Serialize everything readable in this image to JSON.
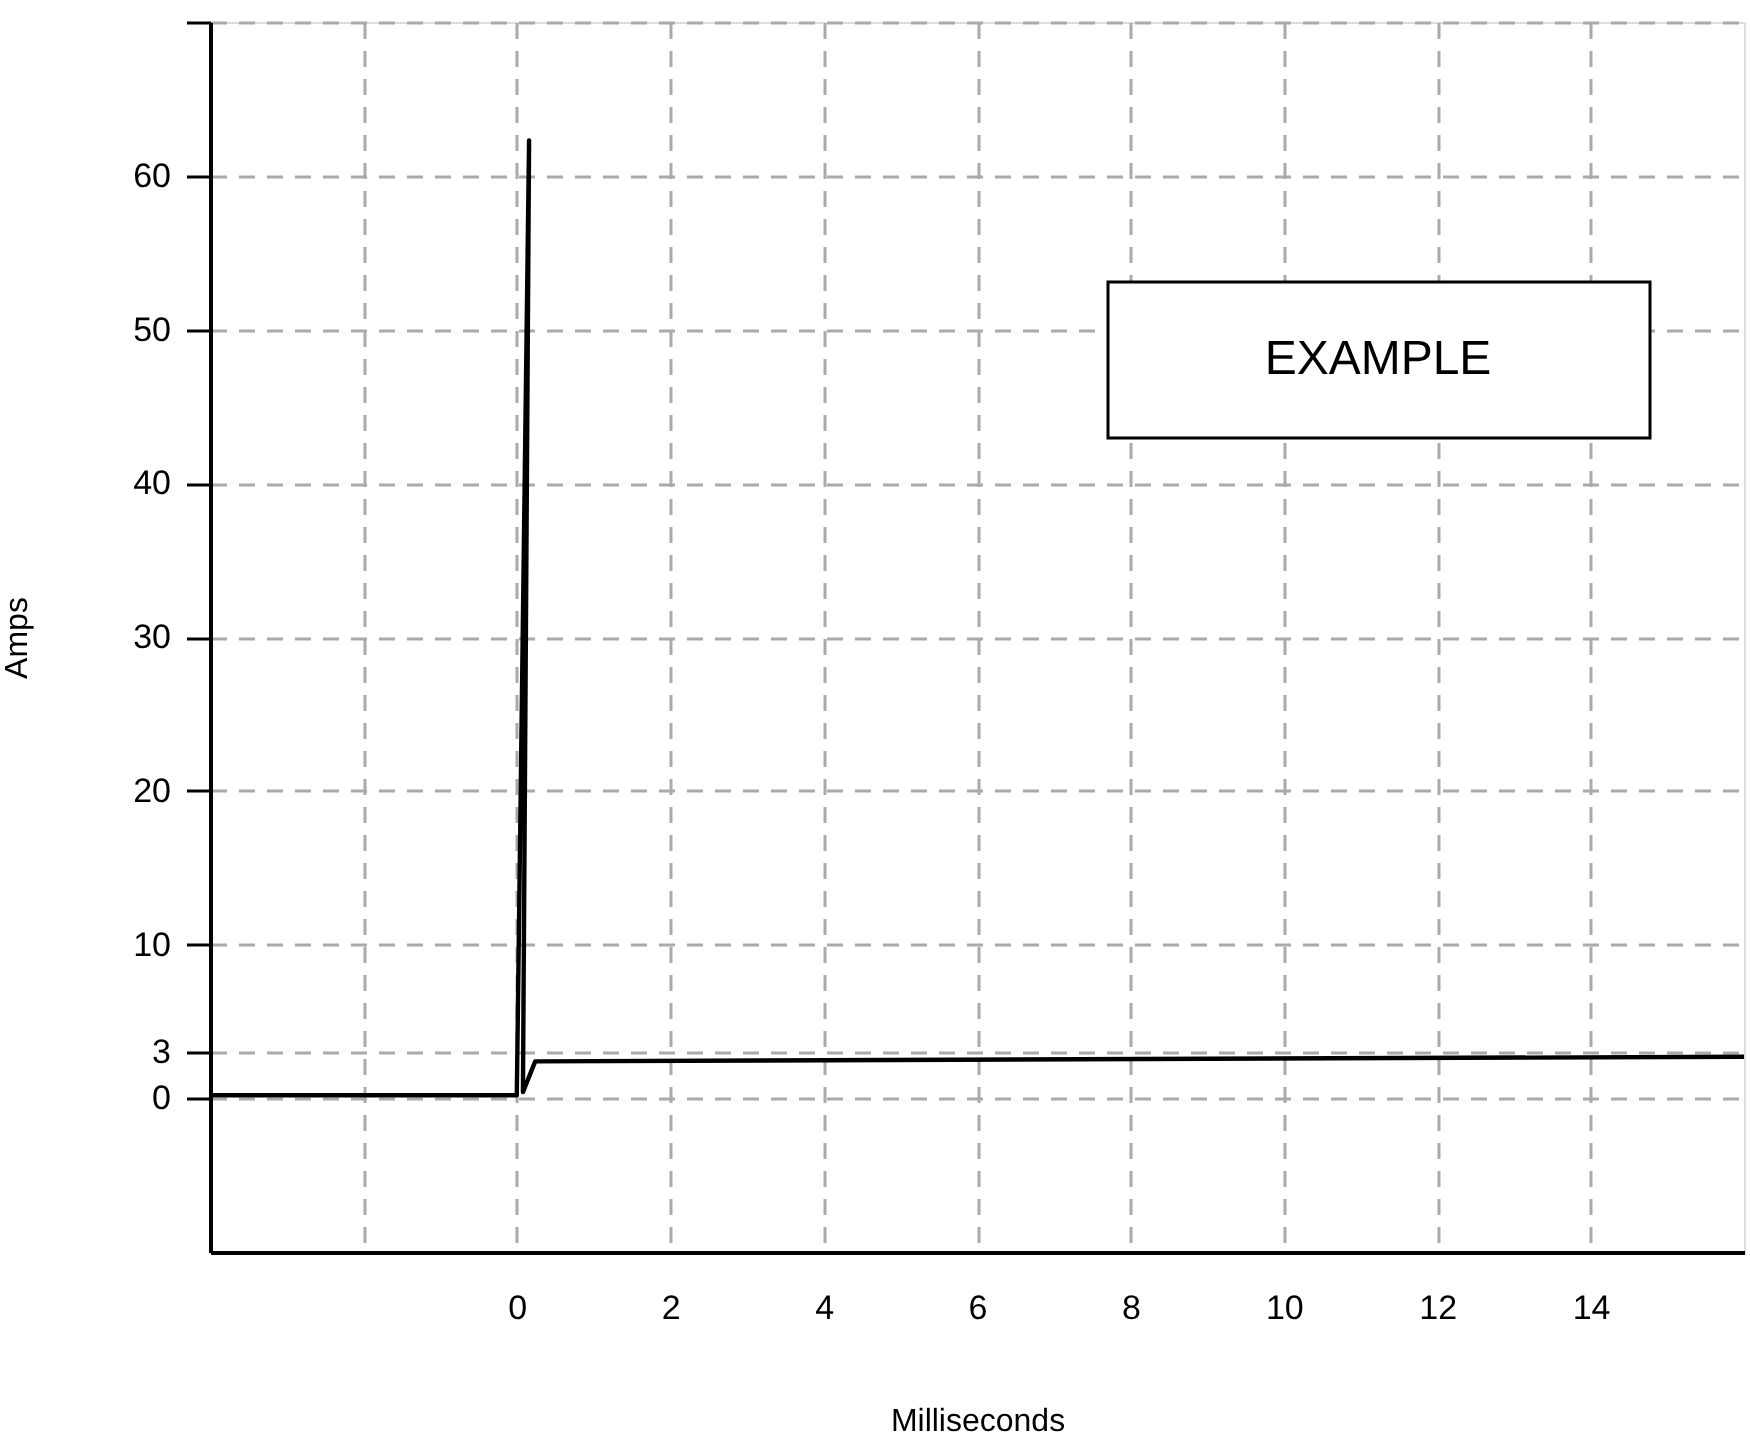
{
  "chart_data": {
    "type": "line",
    "xlabel": "Milliseconds",
    "ylabel": "Amps",
    "x": [
      -4,
      0,
      0.16,
      0.08,
      0.24,
      16
    ],
    "series": [
      {
        "color": "#000000",
        "values": [
          0.2,
          0.2,
          62.3,
          0.4,
          2.4,
          2.7
        ]
      }
    ],
    "xlim": [
      -4,
      16
    ],
    "ylim": [
      -10,
      70
    ],
    "xticks": [
      {
        "value": -4,
        "label": null
      },
      {
        "value": -2,
        "label": null
      },
      0,
      2,
      4,
      6,
      8,
      10,
      12,
      14
    ],
    "yticks": [
      0,
      3,
      10,
      20,
      30,
      40,
      50,
      60,
      {
        "value": 70,
        "label": null
      }
    ],
    "grid": true,
    "legend": false,
    "marker": "none",
    "line_style": "solid",
    "annotations": [
      "EXAMPLE"
    ]
  }
}
